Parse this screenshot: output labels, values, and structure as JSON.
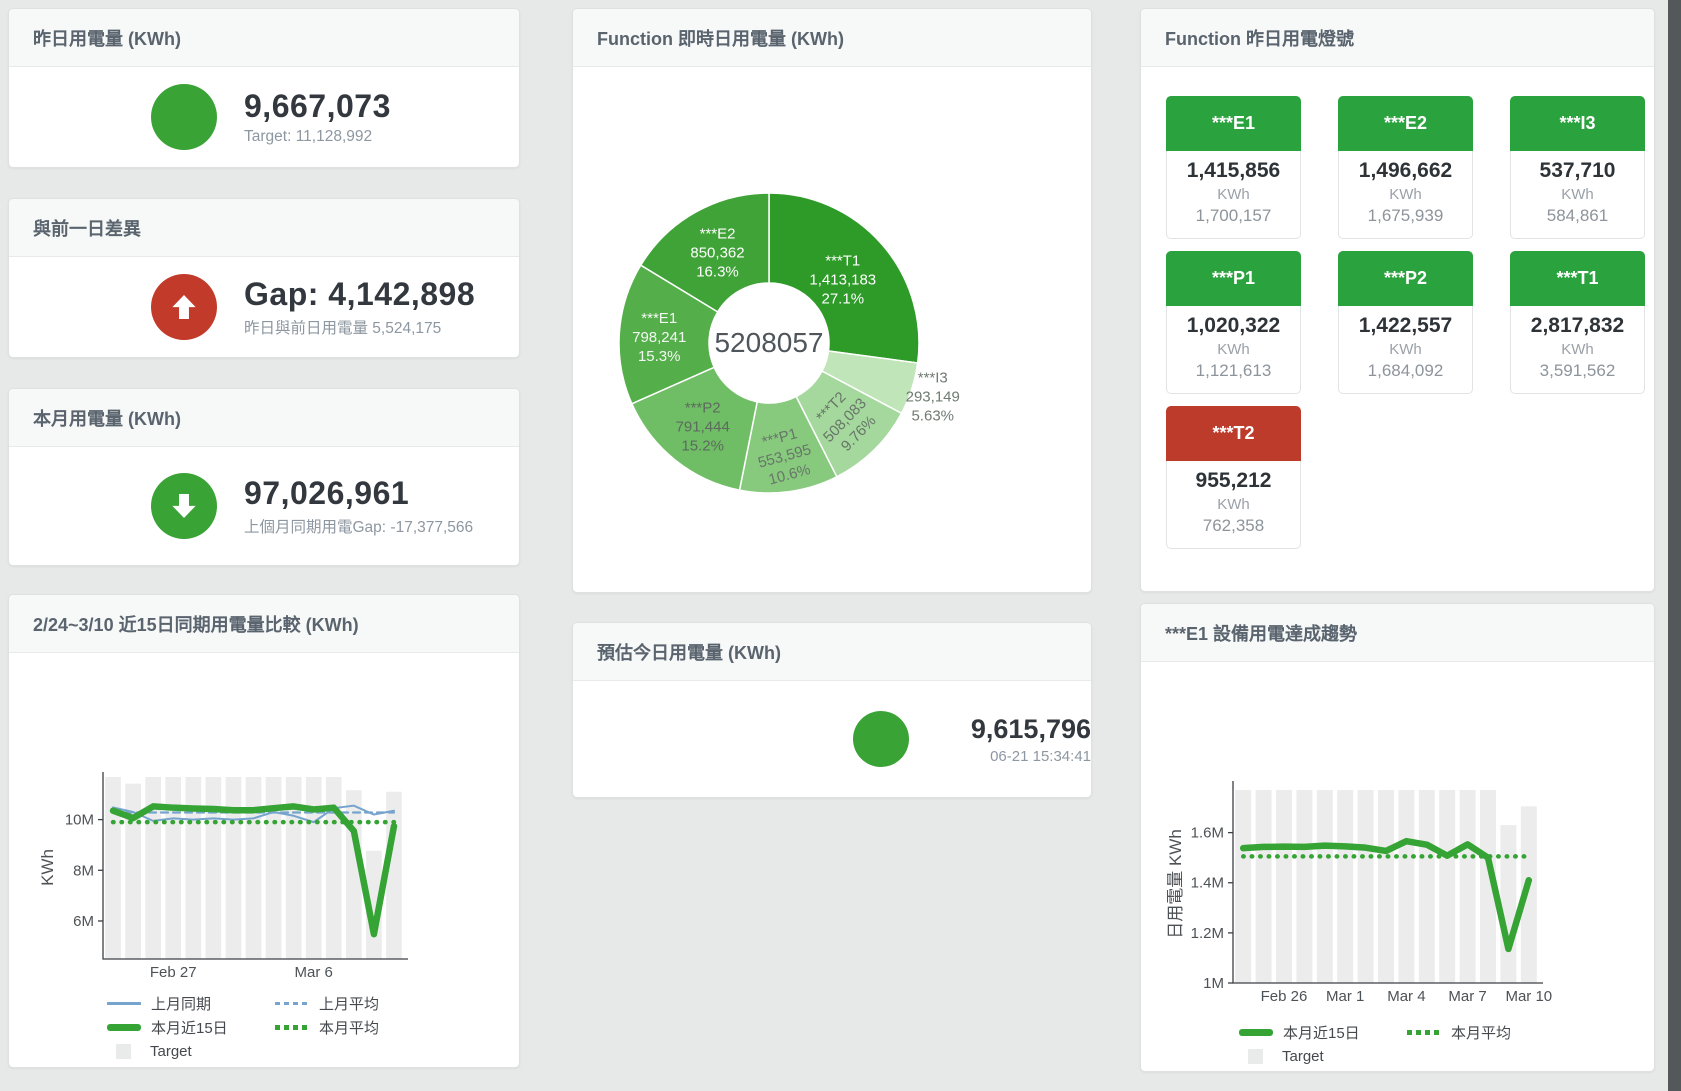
{
  "page": {
    "background": "#e7e8e8",
    "right_strip_color": "#54585b"
  },
  "kpi_cards": [
    {
      "title": "昨日用電量 (KWh)",
      "icon": "circle",
      "icon_color": "#3aa336",
      "value": "9,667,073",
      "subtitle": "Target: 11,128,992"
    },
    {
      "title": "與前一日差異",
      "icon": "arrow-up",
      "icon_color": "#c23b2a",
      "value": "Gap: 4,142,898",
      "subtitle": "昨日與前日用電量 5,524,175"
    },
    {
      "title": "本月用電量 (KWh)",
      "icon": "arrow-down",
      "icon_color": "#3aa336",
      "value": "97,026,961",
      "subtitle": "上個月同期用電Gap: -17,377,566"
    },
    {
      "title": "預估今日用電量 (KWh)",
      "icon": "circle",
      "icon_color": "#3aa336",
      "value": "9,615,796",
      "subtitle": "06-21 15:34:41"
    }
  ],
  "lights_panel": {
    "title": "Function 昨日用電燈號",
    "status_colors": {
      "green": "#2aa23d",
      "red": "#bd3b2b"
    },
    "tiles": [
      {
        "label": "***E1",
        "value": "1,415,856",
        "unit": "KWh",
        "target": "1,700,157",
        "status": "green"
      },
      {
        "label": "***E2",
        "value": "1,496,662",
        "unit": "KWh",
        "target": "1,675,939",
        "status": "green"
      },
      {
        "label": "***I3",
        "value": "537,710",
        "unit": "KWh",
        "target": "584,861",
        "status": "green"
      },
      {
        "label": "***P1",
        "value": "1,020,322",
        "unit": "KWh",
        "target": "1,121,613",
        "status": "green"
      },
      {
        "label": "***P2",
        "value": "1,422,557",
        "unit": "KWh",
        "target": "1,684,092",
        "status": "green"
      },
      {
        "label": "***T1",
        "value": "2,817,832",
        "unit": "KWh",
        "target": "3,591,562",
        "status": "green"
      },
      {
        "label": "***T2",
        "value": "955,212",
        "unit": "KWh",
        "target": "762,358",
        "status": "red"
      }
    ]
  },
  "chart_data": [
    {
      "id": "realtime-donut",
      "type": "pie",
      "title": "Function 即時日用電量 (KWh)",
      "center_total": "5208057",
      "segments": [
        {
          "label": "***T1",
          "value": 1413183,
          "value_text": "1,413,183",
          "pct": 27.1,
          "pct_text": "27.1%",
          "color": "#2e9b28",
          "text_color": "#ffffff",
          "label_r": 98,
          "rotate": 0,
          "outside": false
        },
        {
          "label": "***I3",
          "value": 293149,
          "value_text": "293,149",
          "pct": 5.63,
          "pct_text": "5.63%",
          "color": "#c0e5b8",
          "text_color": "#6f7b72",
          "label_r": 172,
          "rotate": 0,
          "outside": true
        },
        {
          "label": "***T2",
          "value": 508083,
          "value_text": "508,083",
          "pct": 9.76,
          "pct_text": "9.76%",
          "color": "#a4d89c",
          "text_color": "#687569",
          "label_r": 107,
          "rotate": -46,
          "outside": false
        },
        {
          "label": "***P1",
          "value": 553595,
          "value_text": "553,595",
          "pct": 10.6,
          "pct_text": "10.6%",
          "color": "#87ca7e",
          "text_color": "#687569",
          "label_r": 113,
          "rotate": -15,
          "outside": false
        },
        {
          "label": "***P2",
          "value": 791444,
          "value_text": "791,444",
          "pct": 15.2,
          "pct_text": "15.2%",
          "color": "#6fbe65",
          "text_color": "#5d6a5e",
          "label_r": 106,
          "rotate": 0,
          "outside": false
        },
        {
          "label": "***E1",
          "value": 798241,
          "value_text": "798,241",
          "pct": 15.3,
          "pct_text": "15.3%",
          "color": "#54af4a",
          "text_color": "#f4f8f3",
          "label_r": 110,
          "rotate": 0,
          "outside": false
        },
        {
          "label": "***E2",
          "value": 850362,
          "value_text": "850,362",
          "pct": 16.3,
          "pct_text": "16.3%",
          "color": "#3fa337",
          "text_color": "#ffffff",
          "label_r": 105,
          "rotate": 0,
          "outside": false
        }
      ]
    },
    {
      "id": "compare-15day",
      "type": "bar+line",
      "title": "2/24~3/10 近15日同期用電量比較 (KWh)",
      "ylabel": "KWh",
      "ymin": 4500000,
      "ymax": 11720000,
      "yticks": [
        {
          "v": 6000000,
          "label": "6M"
        },
        {
          "v": 8000000,
          "label": "8M"
        },
        {
          "v": 10000000,
          "label": "10M"
        }
      ],
      "xticks": [
        {
          "i": 3,
          "label": "Feb 27"
        },
        {
          "i": 10,
          "label": "Mar 6"
        }
      ],
      "bars": {
        "name": "Target",
        "color": "#ececec",
        "values": [
          11680000,
          11420000,
          11680000,
          11680000,
          11680000,
          11680000,
          11680000,
          11680000,
          11680000,
          11680000,
          11680000,
          11680000,
          11160000,
          8770000,
          11100000
        ]
      },
      "series": [
        {
          "name": "上月平均",
          "color": "#76a4ce",
          "width": 2.2,
          "dash": "dash",
          "values": [
            10280000,
            10280000,
            10280000,
            10280000,
            10280000,
            10280000,
            10280000,
            10280000,
            10280000,
            10280000,
            10280000,
            10280000,
            10280000,
            10280000,
            10280000
          ]
        },
        {
          "name": "上月同期",
          "color": "#76a4ce",
          "width": 2,
          "dash": "solid",
          "values": [
            10480000,
            10300000,
            9950000,
            10050000,
            10000000,
            10050000,
            10000000,
            10050000,
            10300000,
            10150000,
            9900000,
            10450000,
            10550000,
            10200000,
            10350000
          ]
        },
        {
          "name": "本月平均",
          "color": "#35a435",
          "width": 4.5,
          "dash": "dot",
          "values": [
            9900000,
            9900000,
            9900000,
            9900000,
            9900000,
            9900000,
            9900000,
            9900000,
            9900000,
            9900000,
            9900000,
            9900000,
            9900000,
            9900000,
            9900000
          ]
        },
        {
          "name": "本月近15日",
          "color": "#35a435",
          "width": 6.5,
          "dash": "solid",
          "values": [
            10350000,
            10060000,
            10520000,
            10470000,
            10440000,
            10420000,
            10370000,
            10370000,
            10450000,
            10520000,
            10400000,
            10470000,
            9550000,
            5480000,
            9740000
          ]
        }
      ],
      "legend": [
        {
          "label": "上月同期",
          "swatch": "solid-blue"
        },
        {
          "label": "上月平均",
          "swatch": "dash-blue"
        },
        {
          "label": "本月近15日",
          "swatch": "thick-green"
        },
        {
          "label": "本月平均",
          "swatch": "dot-green"
        },
        {
          "label": "Target",
          "swatch": "gray-box"
        }
      ]
    },
    {
      "id": "e1-trend",
      "type": "bar+line",
      "title": "***E1 設備用電達成趨勢",
      "ylabel": "日用電量 KWh",
      "ymin": 1000000,
      "ymax": 1790000,
      "yticks": [
        {
          "v": 1000000,
          "label": "1M"
        },
        {
          "v": 1200000,
          "label": "1.2M"
        },
        {
          "v": 1400000,
          "label": "1.4M"
        },
        {
          "v": 1600000,
          "label": "1.6M"
        }
      ],
      "xticks": [
        {
          "i": 2,
          "label": "Feb 26"
        },
        {
          "i": 5,
          "label": "Mar 1"
        },
        {
          "i": 8,
          "label": "Mar 4"
        },
        {
          "i": 11,
          "label": "Mar 7"
        },
        {
          "i": 14,
          "label": "Mar 10"
        }
      ],
      "bars": {
        "name": "Target",
        "color": "#ececec",
        "values": [
          1770000,
          1770000,
          1770000,
          1770000,
          1770000,
          1770000,
          1770000,
          1770000,
          1770000,
          1770000,
          1770000,
          1770000,
          1770000,
          1630000,
          1705000
        ]
      },
      "series": [
        {
          "name": "本月平均",
          "color": "#35a435",
          "width": 4.5,
          "dash": "dot",
          "values": [
            1505000,
            1505000,
            1505000,
            1505000,
            1505000,
            1505000,
            1505000,
            1505000,
            1505000,
            1505000,
            1505000,
            1505000,
            1505000,
            1505000,
            1505000
          ]
        },
        {
          "name": "本月近15日",
          "color": "#35a435",
          "width": 6.5,
          "dash": "solid",
          "values": [
            1538000,
            1543000,
            1544000,
            1543000,
            1548000,
            1545000,
            1540000,
            1527000,
            1566000,
            1552000,
            1508000,
            1553000,
            1500000,
            1136000,
            1410000
          ]
        }
      ],
      "legend": [
        {
          "label": "本月近15日",
          "swatch": "thick-green"
        },
        {
          "label": "本月平均",
          "swatch": "dot-green"
        },
        {
          "label": "Target",
          "swatch": "gray-box"
        }
      ]
    }
  ]
}
